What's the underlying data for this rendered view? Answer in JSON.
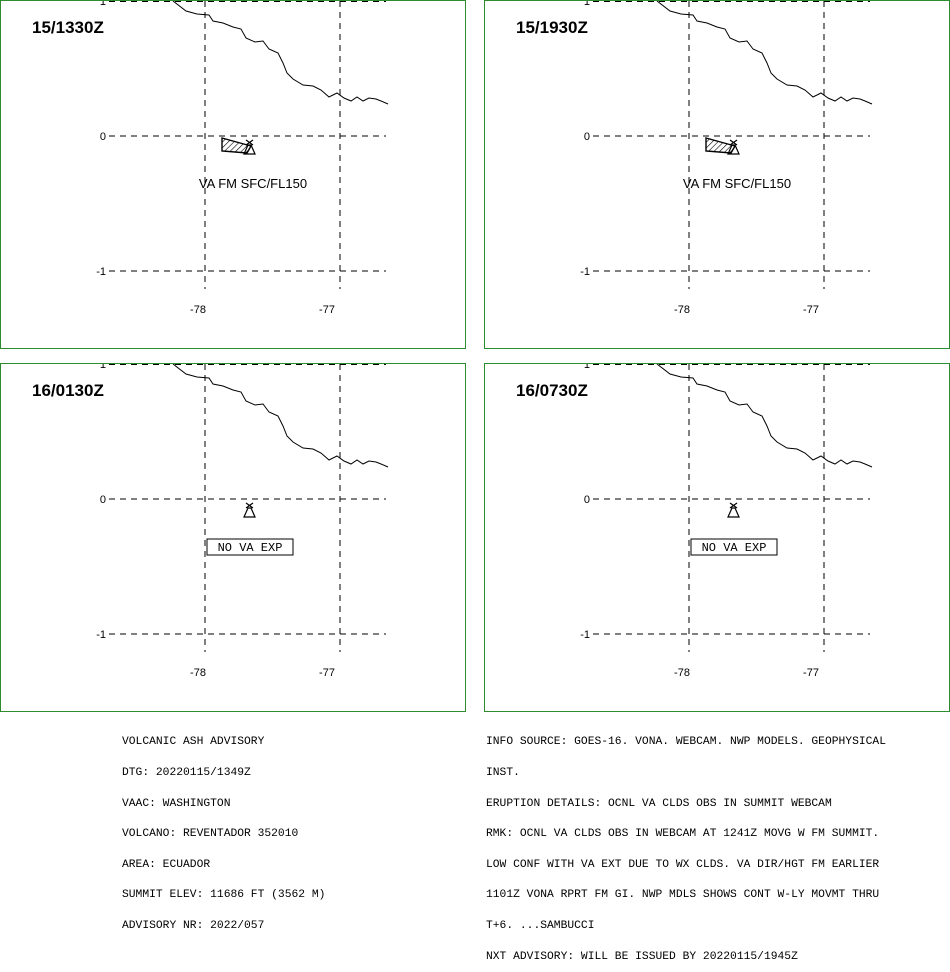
{
  "panels": [
    {
      "time": "15/1330Z",
      "label": "VA FM SFC/FL150",
      "show_polygon": true,
      "label_boxed": false
    },
    {
      "time": "15/1930Z",
      "label": "VA FM SFC/FL150",
      "show_polygon": true,
      "label_boxed": false
    },
    {
      "time": "16/0130Z",
      "label": "NO VA EXP",
      "show_polygon": false,
      "label_boxed": true
    },
    {
      "time": "16/0730Z",
      "label": "NO VA EXP",
      "show_polygon": false,
      "label_boxed": true
    }
  ],
  "axes": {
    "lat_labels": [
      "1",
      "0",
      "-1"
    ],
    "lon_labels": [
      "-78",
      "-77"
    ]
  },
  "colors": {
    "panel_border": "#2e8b2e",
    "lines": "#000000"
  },
  "volcano_icon": "volcano-icon",
  "advisory_left": [
    "VOLCANIC ASH ADVISORY",
    "DTG: 20220115/1349Z",
    "VAAC: WASHINGTON",
    "VOLCANO: REVENTADOR 352010",
    "AREA: ECUADOR",
    "SUMMIT ELEV: 11686 FT (3562 M)",
    "ADVISORY NR: 2022/057"
  ],
  "advisory_right": [
    "INFO SOURCE: GOES-16. VONA. WEBCAM. NWP MODELS. GEOPHYSICAL",
    "INST.",
    "ERUPTION DETAILS: OCNL VA CLDS OBS IN SUMMIT WEBCAM",
    "RMK: OCNL VA CLDS OBS IN WEBCAM AT 1241Z MOVG W FM SUMMIT.",
    "LOW CONF WITH VA EXT DUE TO WX CLDS. VA DIR/HGT FM EARLIER",
    "1101Z VONA RPRT FM GI. NWP MDLS SHOWS CONT W-LY MOVMT THRU",
    "T+6. ...SAMBUCCI",
    "NXT ADVISORY: WILL BE ISSUED BY 20220115/1945Z"
  ]
}
